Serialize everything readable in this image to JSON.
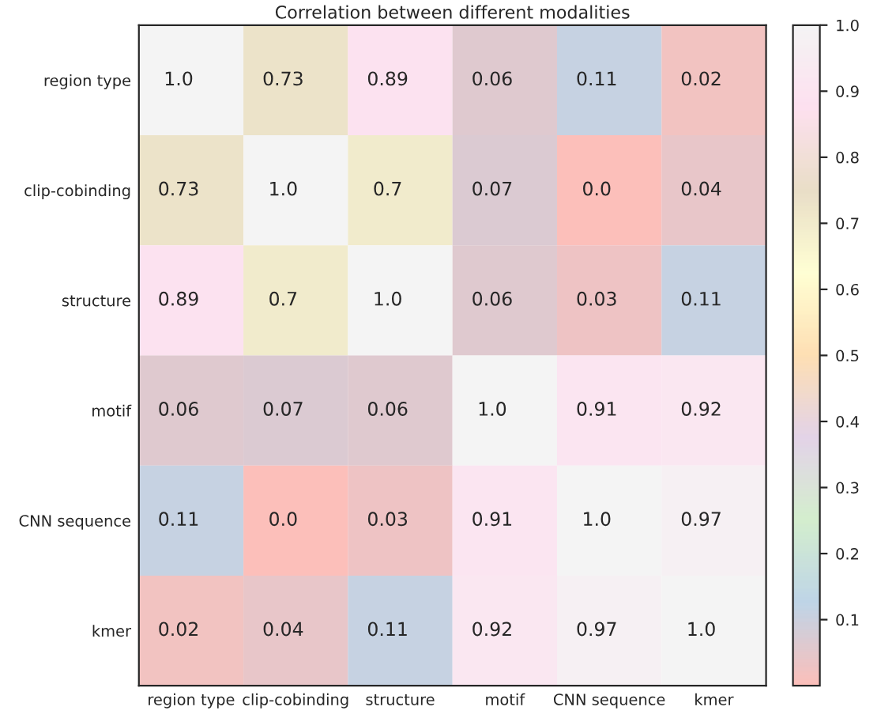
{
  "chart_data": {
    "type": "heatmap",
    "title": "Correlation between different modalities",
    "categories": [
      "region type",
      "clip-cobinding",
      "structure",
      "motif",
      "CNN sequence",
      "kmer"
    ],
    "y_categories": [
      "region type",
      "clip-cobinding",
      "structure",
      "motif",
      "CNN sequence",
      "kmer"
    ],
    "cells": [
      [
        1.0,
        0.73,
        0.89,
        0.06,
        0.11,
        0.02
      ],
      [
        0.73,
        1.0,
        0.7,
        0.07,
        0.0,
        0.04
      ],
      [
        0.89,
        0.7,
        1.0,
        0.06,
        0.03,
        0.11
      ],
      [
        0.06,
        0.07,
        0.06,
        1.0,
        0.91,
        0.92
      ],
      [
        0.11,
        0.0,
        0.03,
        0.91,
        1.0,
        0.97
      ],
      [
        0.02,
        0.04,
        0.11,
        0.92,
        0.97,
        1.0
      ]
    ],
    "cell_labels": [
      [
        "1.0",
        "0.73",
        "0.89",
        "0.06",
        "0.11",
        "0.02"
      ],
      [
        "0.73",
        "1.0",
        "0.7",
        "0.07",
        "0.0",
        "0.04"
      ],
      [
        "0.89",
        "0.7",
        "1.0",
        "0.06",
        "0.03",
        "0.11"
      ],
      [
        "0.06",
        "0.07",
        "0.06",
        "1.0",
        "0.91",
        "0.92"
      ],
      [
        "0.11",
        "0.0",
        "0.03",
        "0.91",
        "1.0",
        "0.97"
      ],
      [
        "0.02",
        "0.04",
        "0.11",
        "0.92",
        "0.97",
        "1.0"
      ]
    ],
    "clim": [
      0,
      1
    ],
    "cticks": [
      {
        "value": 0.1,
        "label": "0.1"
      },
      {
        "value": 0.2,
        "label": "0.2"
      },
      {
        "value": 0.3,
        "label": "0.3"
      },
      {
        "value": 0.4,
        "label": "0.4"
      },
      {
        "value": 0.5,
        "label": "0.5"
      },
      {
        "value": 0.6,
        "label": "0.6"
      },
      {
        "value": 0.7,
        "label": "0.7"
      },
      {
        "value": 0.8,
        "label": "0.8"
      },
      {
        "value": 0.9,
        "label": "0.9"
      },
      {
        "value": 1.0,
        "label": "1.0"
      }
    ]
  }
}
